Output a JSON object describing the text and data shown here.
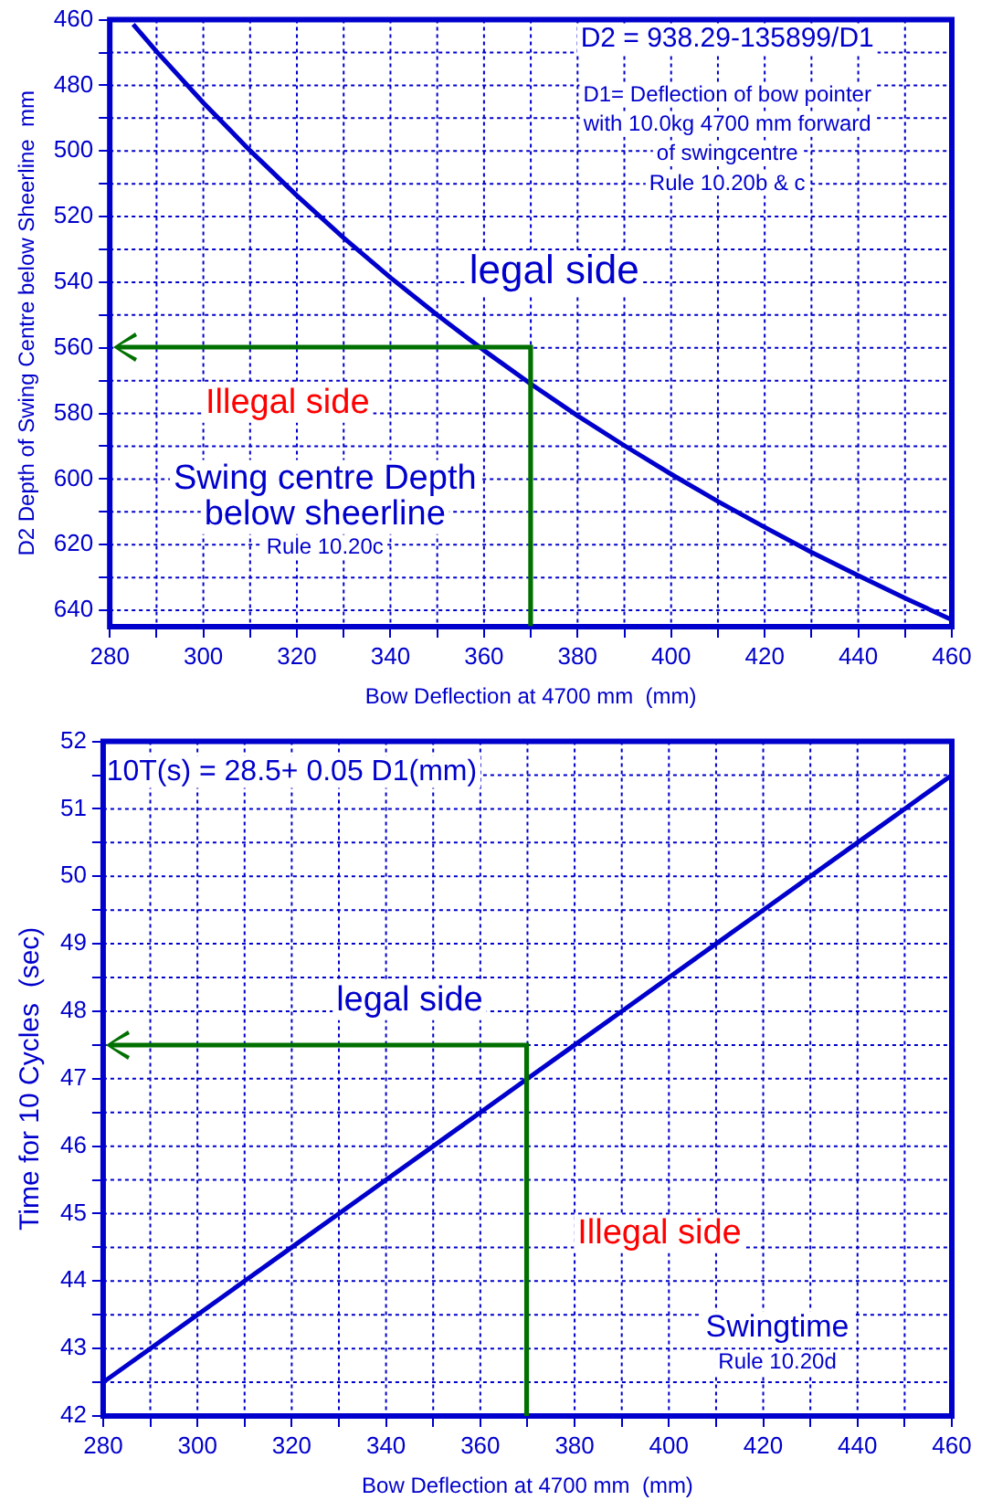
{
  "chart_data": [
    {
      "type": "line",
      "xlabel": "Bow Deflection at 4700 mm  (mm)",
      "ylabel": "D2 Depth of Swing Centre below Sheerline  mm",
      "xlim": [
        280,
        460
      ],
      "ylim": [
        645,
        460
      ],
      "xticks": [
        280,
        {
          "value": 290,
          "label": null
        },
        300,
        {
          "value": 310,
          "label": null
        },
        320,
        {
          "value": 330,
          "label": null
        },
        340,
        {
          "value": 350,
          "label": null
        },
        360,
        {
          "value": 370,
          "label": null
        },
        380,
        {
          "value": 390,
          "label": null
        },
        400,
        {
          "value": 410,
          "label": null
        },
        420,
        {
          "value": 430,
          "label": null
        },
        440,
        {
          "value": 450,
          "label": null
        },
        460
      ],
      "yticks": [
        460,
        {
          "value": 470,
          "label": null
        },
        480,
        {
          "value": 490,
          "label": null
        },
        500,
        {
          "value": 510,
          "label": null
        },
        520,
        {
          "value": 530,
          "label": null
        },
        540,
        {
          "value": 550,
          "label": null
        },
        560,
        {
          "value": 570,
          "label": null
        },
        580,
        {
          "value": 590,
          "label": null
        },
        600,
        {
          "value": 610,
          "label": null
        },
        620,
        {
          "value": 630,
          "label": null
        },
        640
      ],
      "grid": true,
      "legend": false,
      "marker": "none",
      "line_style": "solid",
      "series": [
        {
          "color": "#0000cc",
          "x": [
            285,
            290,
            300,
            310,
            320,
            330,
            340,
            350,
            360,
            370,
            380,
            390,
            400,
            410,
            420,
            430,
            440,
            450,
            460
          ],
          "values": [
            461.4,
            469.7,
            485.3,
            499.9,
            513.6,
            526.5,
            538.6,
            550.0,
            560.8,
            571.0,
            580.7,
            589.8,
            598.5,
            606.8,
            614.7,
            622.3,
            629.4,
            636.3,
            642.9
          ]
        }
      ],
      "annotations": [
        "D2 = 938.29-135899/D1",
        "D1= Deflection of bow pointer",
        "with 10.0kg 4700 mm forward",
        "of swingcentre",
        "Rule 10.20b & c",
        "legal side",
        "Illegal side",
        "Swing centre Depth",
        "below sheerline",
        "Rule 10.20c"
      ]
    },
    {
      "type": "line",
      "xlabel": "Bow Deflection at 4700 mm  (mm)",
      "ylabel": "Time for 10 Cycles  (sec)",
      "xlim": [
        280,
        460
      ],
      "ylim": [
        42,
        52
      ],
      "xticks": [
        280,
        {
          "value": 290,
          "label": null
        },
        300,
        {
          "value": 310,
          "label": null
        },
        320,
        {
          "value": 330,
          "label": null
        },
        340,
        {
          "value": 350,
          "label": null
        },
        360,
        {
          "value": 370,
          "label": null
        },
        380,
        {
          "value": 390,
          "label": null
        },
        400,
        {
          "value": 410,
          "label": null
        },
        420,
        {
          "value": 430,
          "label": null
        },
        440,
        {
          "value": 450,
          "label": null
        },
        460
      ],
      "yticks": [
        42,
        {
          "value": 42.5,
          "label": null
        },
        43,
        {
          "value": 43.5,
          "label": null
        },
        44,
        {
          "value": 44.5,
          "label": null
        },
        45,
        {
          "value": 45.5,
          "label": null
        },
        46,
        {
          "value": 46.5,
          "label": null
        },
        47,
        {
          "value": 47.5,
          "label": null
        },
        48,
        {
          "value": 48.5,
          "label": null
        },
        49,
        {
          "value": 49.5,
          "label": null
        },
        50,
        {
          "value": 50.5,
          "label": null
        },
        51,
        {
          "value": 51.5,
          "label": null
        },
        52
      ],
      "grid": true,
      "legend": false,
      "marker": "none",
      "line_style": "solid",
      "series": [
        {
          "color": "#0000cc",
          "x": [
            280,
            290,
            300,
            310,
            320,
            330,
            340,
            350,
            360,
            370,
            380,
            390,
            400,
            410,
            420,
            430,
            440,
            450,
            460
          ],
          "values": [
            42.5,
            43,
            43.5,
            44,
            44.5,
            45,
            45.5,
            46,
            46.5,
            47,
            47.5,
            48,
            48.5,
            49,
            49.5,
            50,
            50.5,
            51,
            51.5
          ]
        }
      ],
      "annotations": [
        "10T(s) = 28.5+ 0.05 D1(mm)",
        "legal side",
        "Illegal side",
        "Swingtime",
        "Rule 10.20d"
      ]
    }
  ]
}
